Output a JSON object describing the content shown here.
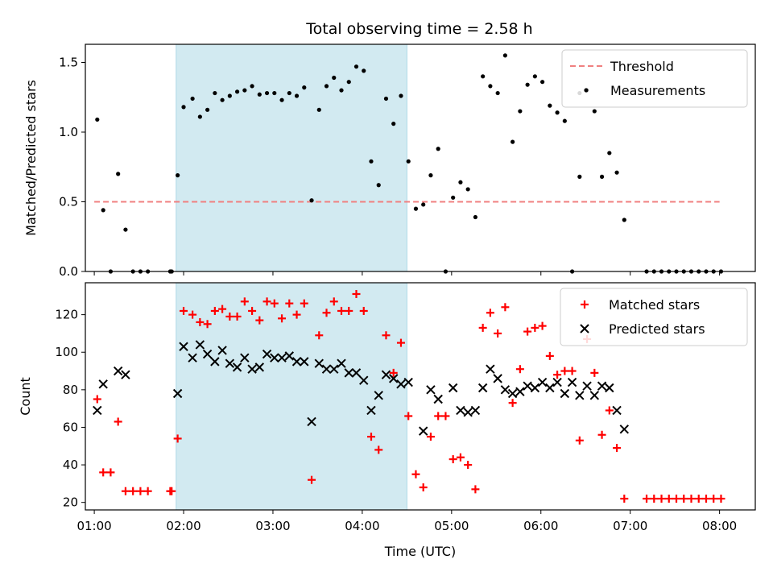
{
  "chart_data": [
    {
      "type": "scatter",
      "title": "Total observing time = 2.58 h",
      "ylabel": "Matched/Predicted stars",
      "xlabel": "",
      "xlim": [
        "00:54",
        "08:24"
      ],
      "ylim": [
        0,
        1.63
      ],
      "yticks": [
        0.0,
        0.5,
        1.0,
        1.5
      ],
      "ytick_labels": [
        "0.0",
        "0.5",
        "1.0",
        "1.5"
      ],
      "highlight_span": [
        "01:55",
        "04:30"
      ],
      "highlight_color": "#add8e6",
      "threshold": {
        "name": "Threshold",
        "value": 0.5,
        "x_range": [
          "01:00",
          "08:00"
        ],
        "color": "#f08080"
      },
      "legend": {
        "placement": "top-right",
        "entries": [
          "Threshold",
          "Measurements"
        ]
      },
      "series": [
        {
          "name": "Measurements",
          "color": "#000000",
          "marker": "dot",
          "points": [
            [
              "01:02",
              1.09
            ],
            [
              "01:06",
              0.44
            ],
            [
              "01:11",
              0.0
            ],
            [
              "01:16",
              0.7
            ],
            [
              "01:21",
              0.3
            ],
            [
              "01:26",
              0.0
            ],
            [
              "01:31",
              0.0
            ],
            [
              "01:36",
              0.0
            ],
            [
              "01:51",
              0.0
            ],
            [
              "01:52",
              0.0
            ],
            [
              "01:56",
              0.69
            ],
            [
              "02:00",
              1.18
            ],
            [
              "02:06",
              1.24
            ],
            [
              "02:11",
              1.11
            ],
            [
              "02:16",
              1.16
            ],
            [
              "02:21",
              1.28
            ],
            [
              "02:26",
              1.23
            ],
            [
              "02:31",
              1.26
            ],
            [
              "02:36",
              1.29
            ],
            [
              "02:41",
              1.3
            ],
            [
              "02:46",
              1.33
            ],
            [
              "02:51",
              1.27
            ],
            [
              "02:56",
              1.28
            ],
            [
              "03:01",
              1.28
            ],
            [
              "03:06",
              1.23
            ],
            [
              "03:11",
              1.28
            ],
            [
              "03:16",
              1.26
            ],
            [
              "03:21",
              1.32
            ],
            [
              "03:26",
              0.51
            ],
            [
              "03:31",
              1.16
            ],
            [
              "03:36",
              1.33
            ],
            [
              "03:41",
              1.39
            ],
            [
              "03:46",
              1.3
            ],
            [
              "03:51",
              1.36
            ],
            [
              "03:56",
              1.47
            ],
            [
              "04:01",
              1.44
            ],
            [
              "04:06",
              0.79
            ],
            [
              "04:11",
              0.62
            ],
            [
              "04:16",
              1.24
            ],
            [
              "04:21",
              1.06
            ],
            [
              "04:26",
              1.26
            ],
            [
              "04:31",
              0.79
            ],
            [
              "04:36",
              0.45
            ],
            [
              "04:41",
              0.48
            ],
            [
              "04:46",
              0.69
            ],
            [
              "04:51",
              0.88
            ],
            [
              "04:56",
              0.0
            ],
            [
              "05:01",
              0.53
            ],
            [
              "05:06",
              0.64
            ],
            [
              "05:11",
              0.59
            ],
            [
              "05:16",
              0.39
            ],
            [
              "05:21",
              1.4
            ],
            [
              "05:26",
              1.33
            ],
            [
              "05:31",
              1.28
            ],
            [
              "05:36",
              1.55
            ],
            [
              "05:41",
              0.93
            ],
            [
              "05:46",
              1.15
            ],
            [
              "05:51",
              1.34
            ],
            [
              "05:56",
              1.4
            ],
            [
              "06:01",
              1.36
            ],
            [
              "06:06",
              1.19
            ],
            [
              "06:11",
              1.14
            ],
            [
              "06:16",
              1.08
            ],
            [
              "06:21",
              0.0
            ],
            [
              "06:26",
              1.28
            ],
            [
              "06:26",
              0.68
            ],
            [
              "06:31",
              1.3
            ],
            [
              "06:36",
              1.15
            ],
            [
              "06:41",
              0.68
            ],
            [
              "06:46",
              0.85
            ],
            [
              "06:51",
              0.71
            ],
            [
              "06:56",
              0.37
            ],
            [
              "07:11",
              0.0
            ],
            [
              "07:16",
              0.0
            ],
            [
              "07:21",
              0.0
            ],
            [
              "07:26",
              0.0
            ],
            [
              "07:31",
              0.0
            ],
            [
              "07:36",
              0.0
            ],
            [
              "07:41",
              0.0
            ],
            [
              "07:46",
              0.0
            ],
            [
              "07:51",
              0.0
            ],
            [
              "07:56",
              0.0
            ],
            [
              "08:01",
              0.0
            ]
          ]
        }
      ]
    },
    {
      "type": "scatter",
      "title": "",
      "xlabel": "Time (UTC)",
      "ylabel": "Count",
      "xlim": [
        "00:54",
        "08:24"
      ],
      "ylim": [
        16,
        137
      ],
      "yticks": [
        20,
        40,
        60,
        80,
        100,
        120
      ],
      "xticks": [
        "01:00",
        "02:00",
        "03:00",
        "04:00",
        "05:00",
        "06:00",
        "07:00",
        "08:00"
      ],
      "highlight_span": [
        "01:55",
        "04:30"
      ],
      "highlight_color": "#add8e6",
      "legend": {
        "placement": "top-right",
        "entries": [
          "Matched stars",
          "Predicted stars"
        ]
      },
      "series": [
        {
          "name": "Matched stars",
          "color": "#ff0000",
          "marker": "plus",
          "points": [
            [
              "01:02",
              75
            ],
            [
              "01:06",
              36
            ],
            [
              "01:11",
              36
            ],
            [
              "01:16",
              63
            ],
            [
              "01:21",
              26
            ],
            [
              "01:26",
              26
            ],
            [
              "01:31",
              26
            ],
            [
              "01:36",
              26
            ],
            [
              "01:51",
              26
            ],
            [
              "01:52",
              26
            ],
            [
              "01:56",
              54
            ],
            [
              "02:00",
              122
            ],
            [
              "02:06",
              120
            ],
            [
              "02:11",
              116
            ],
            [
              "02:16",
              115
            ],
            [
              "02:21",
              122
            ],
            [
              "02:26",
              123
            ],
            [
              "02:31",
              119
            ],
            [
              "02:36",
              119
            ],
            [
              "02:41",
              127
            ],
            [
              "02:46",
              122
            ],
            [
              "02:51",
              117
            ],
            [
              "02:56",
              127
            ],
            [
              "03:01",
              126
            ],
            [
              "03:06",
              118
            ],
            [
              "03:11",
              126
            ],
            [
              "03:16",
              120
            ],
            [
              "03:21",
              126
            ],
            [
              "03:26",
              32
            ],
            [
              "03:31",
              109
            ],
            [
              "03:36",
              121
            ],
            [
              "03:41",
              127
            ],
            [
              "03:46",
              122
            ],
            [
              "03:51",
              122
            ],
            [
              "03:56",
              131
            ],
            [
              "04:01",
              122
            ],
            [
              "04:06",
              55
            ],
            [
              "04:11",
              48
            ],
            [
              "04:16",
              109
            ],
            [
              "04:21",
              89
            ],
            [
              "04:26",
              105
            ],
            [
              "04:31",
              66
            ],
            [
              "04:36",
              35
            ],
            [
              "04:41",
              28
            ],
            [
              "04:46",
              55
            ],
            [
              "04:51",
              66
            ],
            [
              "04:56",
              66
            ],
            [
              "05:01",
              43
            ],
            [
              "05:06",
              44
            ],
            [
              "05:11",
              40
            ],
            [
              "05:16",
              27
            ],
            [
              "05:21",
              113
            ],
            [
              "05:26",
              121
            ],
            [
              "05:31",
              110
            ],
            [
              "05:36",
              124
            ],
            [
              "05:41",
              73
            ],
            [
              "05:46",
              91
            ],
            [
              "05:51",
              111
            ],
            [
              "05:56",
              113
            ],
            [
              "06:01",
              114
            ],
            [
              "06:06",
              98
            ],
            [
              "06:11",
              88
            ],
            [
              "06:16",
              90
            ],
            [
              "06:21",
              90
            ],
            [
              "06:26",
              53
            ],
            [
              "06:31",
              107
            ],
            [
              "06:36",
              89
            ],
            [
              "06:41",
              56
            ],
            [
              "06:46",
              69
            ],
            [
              "06:51",
              49
            ],
            [
              "06:56",
              22
            ],
            [
              "07:11",
              22
            ],
            [
              "07:16",
              22
            ],
            [
              "07:21",
              22
            ],
            [
              "07:26",
              22
            ],
            [
              "07:31",
              22
            ],
            [
              "07:36",
              22
            ],
            [
              "07:41",
              22
            ],
            [
              "07:46",
              22
            ],
            [
              "07:51",
              22
            ],
            [
              "07:56",
              22
            ],
            [
              "08:01",
              22
            ]
          ]
        },
        {
          "name": "Predicted stars",
          "color": "#000000",
          "marker": "x",
          "points": [
            [
              "01:02",
              69
            ],
            [
              "01:06",
              83
            ],
            [
              "01:16",
              90
            ],
            [
              "01:21",
              88
            ],
            [
              "01:56",
              78
            ],
            [
              "02:00",
              103
            ],
            [
              "02:06",
              97
            ],
            [
              "02:11",
              104
            ],
            [
              "02:16",
              99
            ],
            [
              "02:21",
              95
            ],
            [
              "02:26",
              101
            ],
            [
              "02:31",
              94
            ],
            [
              "02:36",
              92
            ],
            [
              "02:41",
              97
            ],
            [
              "02:46",
              91
            ],
            [
              "02:51",
              92
            ],
            [
              "02:56",
              99
            ],
            [
              "03:01",
              97
            ],
            [
              "03:06",
              97
            ],
            [
              "03:11",
              98
            ],
            [
              "03:16",
              95
            ],
            [
              "03:21",
              95
            ],
            [
              "03:26",
              63
            ],
            [
              "03:31",
              94
            ],
            [
              "03:36",
              91
            ],
            [
              "03:41",
              91
            ],
            [
              "03:46",
              94
            ],
            [
              "03:51",
              89
            ],
            [
              "03:56",
              89
            ],
            [
              "04:01",
              85
            ],
            [
              "04:06",
              69
            ],
            [
              "04:11",
              77
            ],
            [
              "04:16",
              88
            ],
            [
              "04:21",
              86
            ],
            [
              "04:26",
              83
            ],
            [
              "04:31",
              84
            ],
            [
              "04:41",
              58
            ],
            [
              "04:46",
              80
            ],
            [
              "04:51",
              75
            ],
            [
              "05:01",
              81
            ],
            [
              "05:06",
              69
            ],
            [
              "05:11",
              68
            ],
            [
              "05:16",
              69
            ],
            [
              "05:21",
              81
            ],
            [
              "05:26",
              91
            ],
            [
              "05:31",
              86
            ],
            [
              "05:36",
              80
            ],
            [
              "05:41",
              78
            ],
            [
              "05:46",
              79
            ],
            [
              "05:51",
              82
            ],
            [
              "05:56",
              81
            ],
            [
              "06:01",
              84
            ],
            [
              "06:06",
              81
            ],
            [
              "06:11",
              84
            ],
            [
              "06:16",
              78
            ],
            [
              "06:21",
              84
            ],
            [
              "06:26",
              77
            ],
            [
              "06:31",
              82
            ],
            [
              "06:36",
              77
            ],
            [
              "06:41",
              82
            ],
            [
              "06:46",
              81
            ],
            [
              "06:51",
              69
            ],
            [
              "06:56",
              59
            ]
          ]
        }
      ]
    }
  ]
}
